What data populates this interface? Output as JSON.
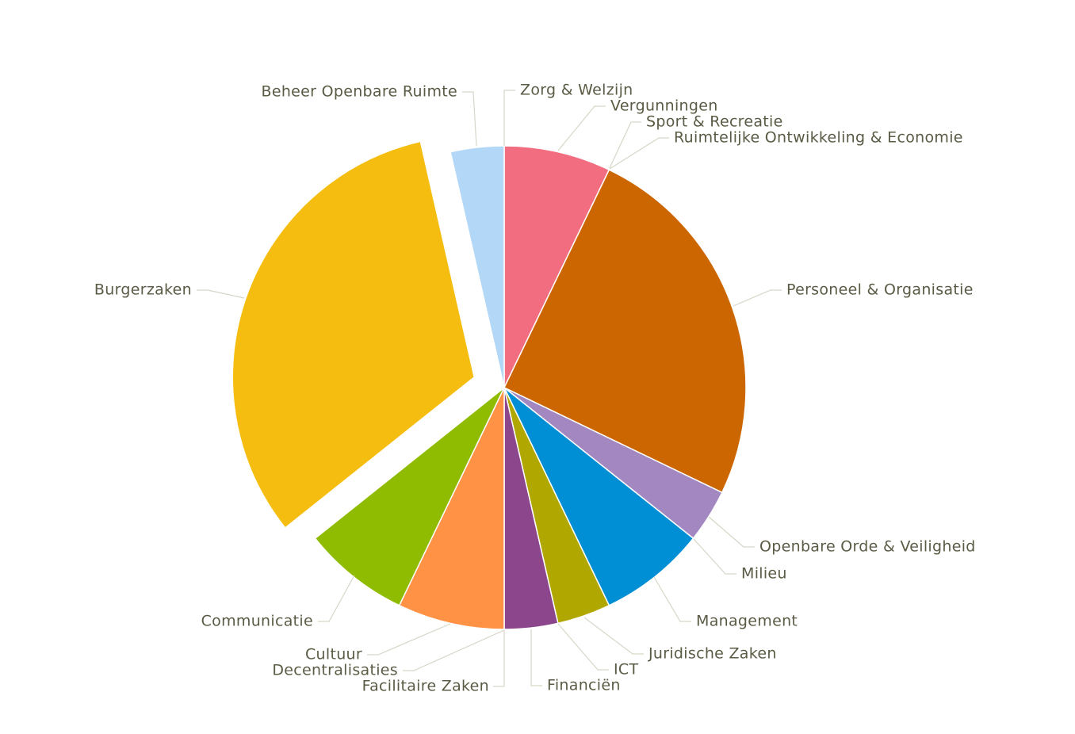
{
  "chart_data": {
    "type": "pie",
    "title": "",
    "legend": "none",
    "slices": [
      {
        "label": "Zorg & Welzijn",
        "value": 2,
        "color": "#f26d80"
      },
      {
        "label": "Vergunningen",
        "value": 0,
        "color": "#f26d80"
      },
      {
        "label": "Sport & Recreatie",
        "value": 0,
        "color": "#f26d80"
      },
      {
        "label": "Ruimtelijke Ontwikkeling & Economie",
        "value": 0,
        "color": "#f26d80"
      },
      {
        "label": "Personeel & Organisatie",
        "value": 7,
        "color": "#cc6600"
      },
      {
        "label": "Openbare Orde & Veiligheid",
        "value": 1,
        "color": "#a287c0"
      },
      {
        "label": "Milieu",
        "value": 0,
        "color": "#a287c0"
      },
      {
        "label": "Management",
        "value": 2,
        "color": "#008fd5"
      },
      {
        "label": "Juridische Zaken",
        "value": 1,
        "color": "#b0a800"
      },
      {
        "label": "ICT",
        "value": 0,
        "color": "#b0a800"
      },
      {
        "label": "Financiën",
        "value": 1,
        "color": "#8c468c"
      },
      {
        "label": "Facilitaire Zaken",
        "value": 0,
        "color": "#8c468c"
      },
      {
        "label": "Decentralisaties",
        "value": 0,
        "color": "#ff9245"
      },
      {
        "label": "Cultuur",
        "value": 2,
        "color": "#ff9245"
      },
      {
        "label": "Communicatie",
        "value": 2,
        "color": "#8fbb00"
      },
      {
        "label": "Burgerzaken",
        "value": 9,
        "color": "#f5bd10",
        "exploded": true
      },
      {
        "label": "Beheer Openbare Ruimte",
        "value": 1,
        "color": "#b3d7f7"
      }
    ]
  }
}
